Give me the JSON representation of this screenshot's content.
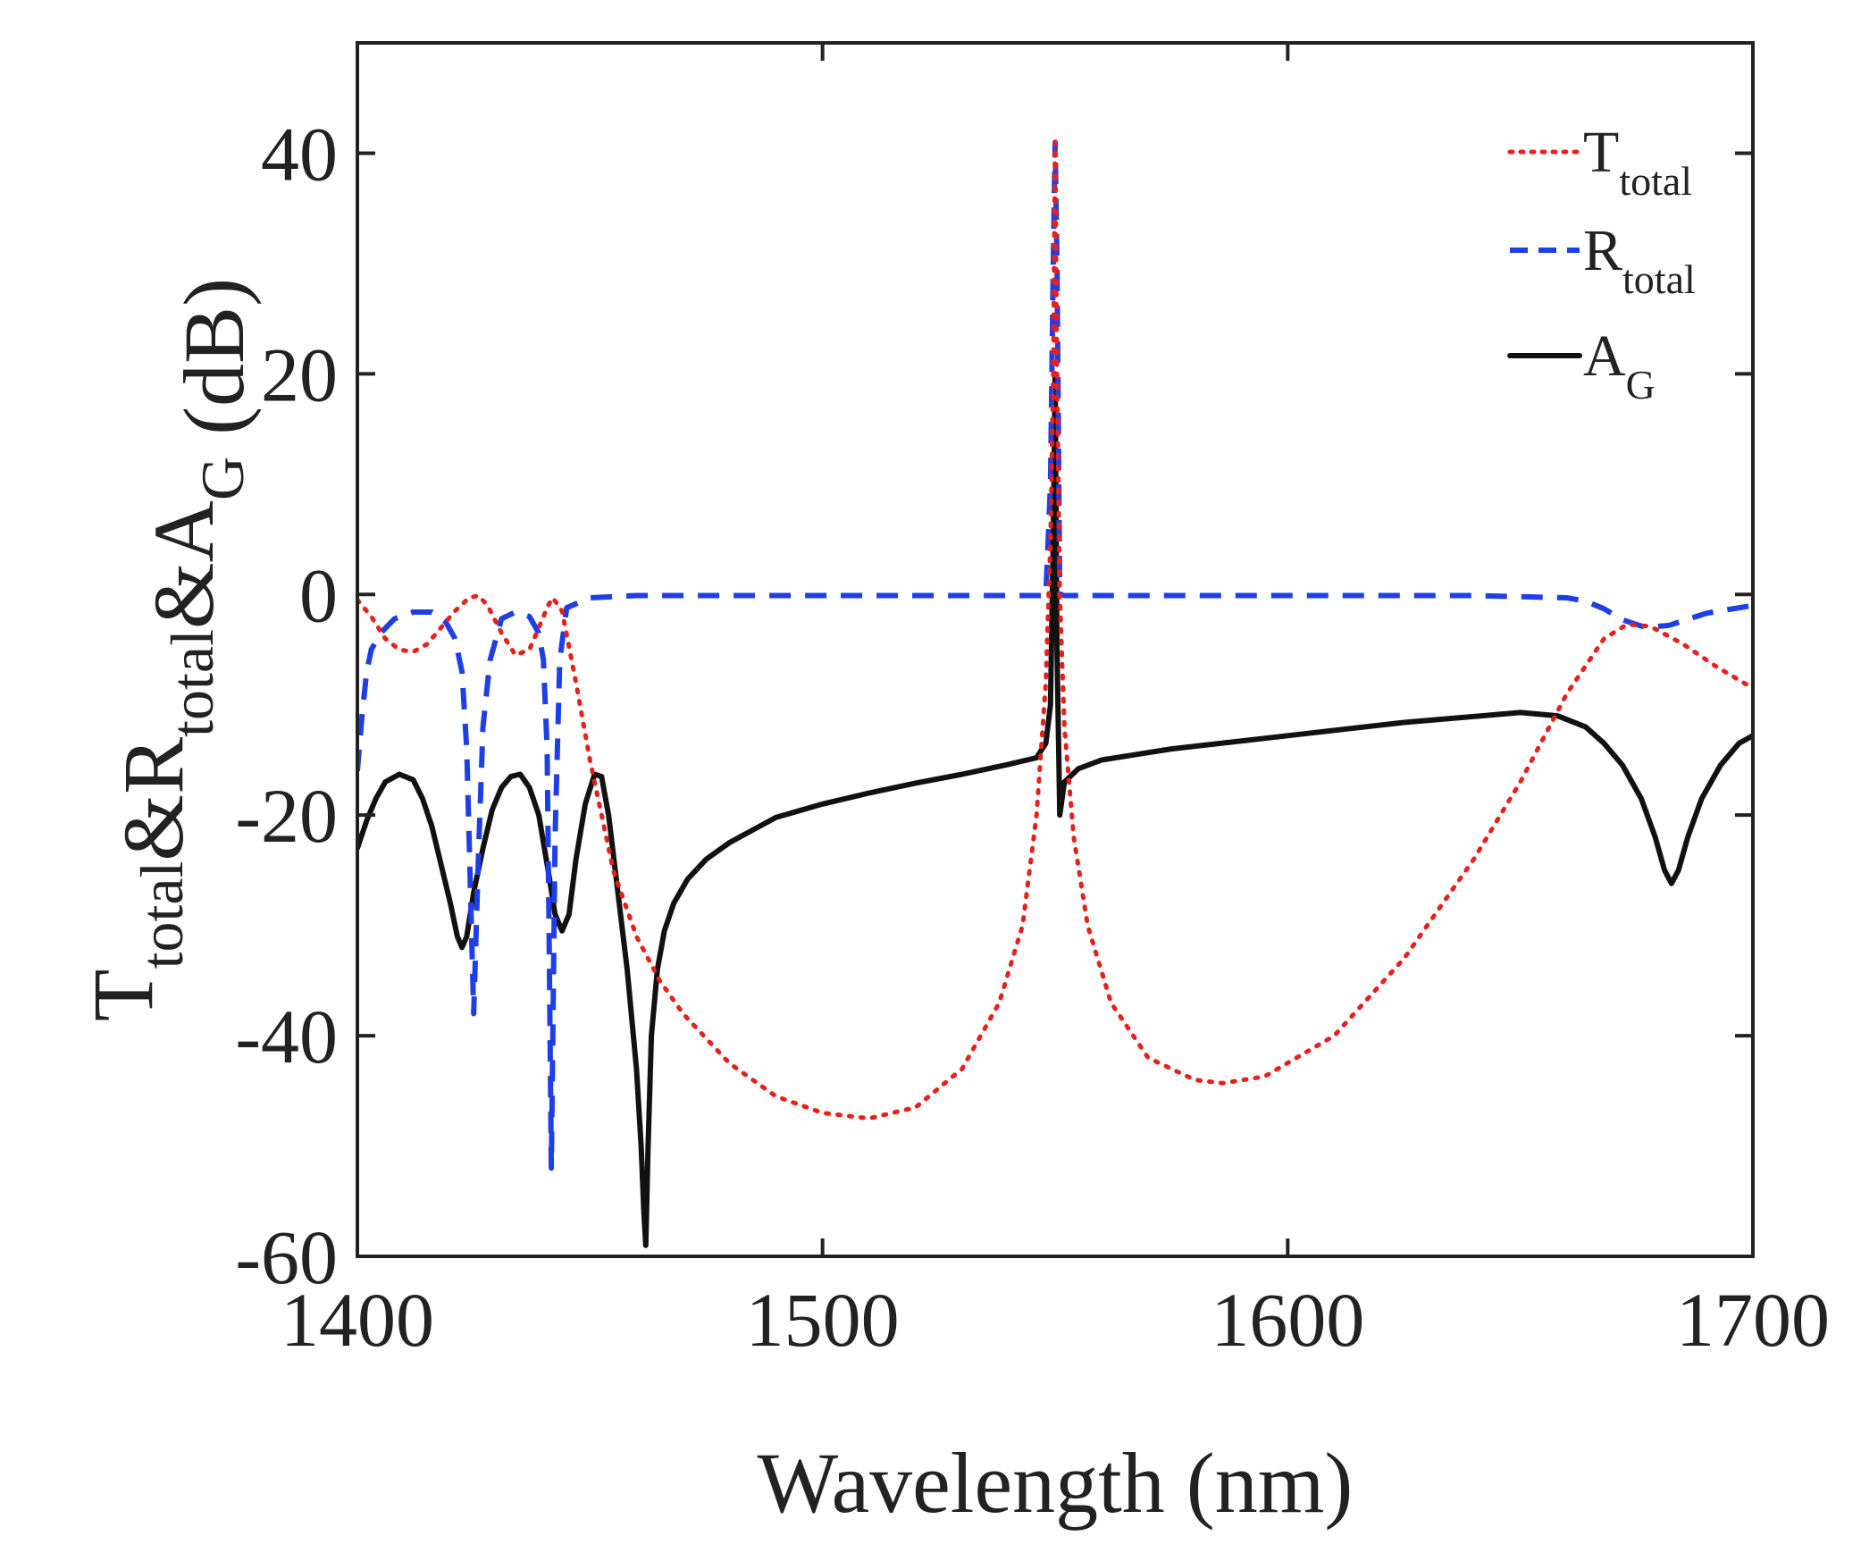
{
  "chart_data": {
    "type": "line",
    "xlabel": "Wavelength (nm)",
    "ylabel": {
      "parts": [
        {
          "text": "T",
          "sub": "total"
        },
        {
          "text": "&R",
          "sub": "total"
        },
        {
          "text": "&A",
          "sub": "G"
        },
        {
          "text": " (dB)",
          "sub": ""
        }
      ]
    },
    "xlim": [
      1400,
      1700
    ],
    "ylim": [
      -60,
      50
    ],
    "xticks": [
      1400,
      1500,
      1600,
      1700
    ],
    "yticks": [
      -60,
      -40,
      -20,
      0,
      20,
      40
    ],
    "xtick_labels": [
      "1400",
      "1500",
      "1600",
      "1700"
    ],
    "ytick_labels": [
      "-60",
      "-40",
      "-20",
      "0",
      "20",
      "40"
    ],
    "grid": false,
    "legend_position": "top-right",
    "series": [
      {
        "name": "T",
        "name_sub": "total",
        "color": "#e8201c",
        "style": "dotted",
        "x": [
          1400,
          1403,
          1406,
          1409,
          1412,
          1415,
          1418,
          1421,
          1424,
          1426,
          1428,
          1431,
          1434,
          1437,
          1439,
          1441,
          1442,
          1444,
          1447,
          1450,
          1455,
          1460,
          1465,
          1470,
          1480,
          1490,
          1500,
          1510,
          1520,
          1530,
          1538,
          1543,
          1546,
          1548,
          1549,
          1549.6,
          1550,
          1550.4,
          1551,
          1552,
          1554,
          1557,
          1562,
          1570,
          1580,
          1586,
          1595,
          1610,
          1625,
          1640,
          1650,
          1660,
          1668,
          1673,
          1678,
          1685,
          1692,
          1700
        ],
        "y": [
          -0.5,
          -2,
          -4,
          -5,
          -5.2,
          -4.5,
          -3,
          -1.5,
          -0.3,
          -0.1,
          -1,
          -3.5,
          -5.5,
          -5,
          -3,
          -1,
          -0.3,
          -1.5,
          -8,
          -15,
          -25,
          -31,
          -35,
          -38,
          -42.5,
          -45.5,
          -47,
          -47.5,
          -46.5,
          -43,
          -37,
          -30,
          -20,
          -8,
          5,
          20,
          41,
          20,
          0,
          -12,
          -22,
          -30,
          -37,
          -42,
          -44,
          -44.3,
          -43.7,
          -40,
          -33,
          -24,
          -17,
          -9,
          -4,
          -2.7,
          -2.9,
          -4.5,
          -6.5,
          -8.5
        ]
      },
      {
        "name": "R",
        "name_sub": "total",
        "color": "#1f3fe6",
        "style": "dashed",
        "x": [
          1400,
          1401,
          1402,
          1403,
          1405,
          1408,
          1412,
          1416,
          1419,
          1421,
          1422.5,
          1423.5,
          1424.2,
          1425,
          1426,
          1427,
          1428.5,
          1431,
          1434,
          1437,
          1439,
          1440,
          1440.8,
          1441.2,
          1441.7,
          1442.5,
          1443.5,
          1445,
          1450,
          1460,
          1480,
          1500,
          1530,
          1548,
          1549,
          1549.6,
          1550,
          1550.4,
          1551,
          1552,
          1560,
          1600,
          1640,
          1660,
          1664,
          1668,
          1672,
          1677,
          1682,
          1690,
          1700
        ],
        "y": [
          -16,
          -11,
          -7,
          -5,
          -3.5,
          -2.2,
          -1.6,
          -1.6,
          -2.5,
          -4,
          -7,
          -14,
          -25,
          -38,
          -24,
          -12,
          -6,
          -2.2,
          -1.6,
          -2,
          -3.5,
          -6,
          -14,
          -30,
          -52,
          -22,
          -6,
          -1.2,
          -0.3,
          -0.1,
          -0.1,
          -0.1,
          -0.1,
          -0.1,
          10,
          30,
          41,
          30,
          0,
          -0.1,
          -0.1,
          -0.1,
          -0.1,
          -0.3,
          -0.6,
          -1.3,
          -2.3,
          -3,
          -2.8,
          -1.7,
          -1
        ]
      },
      {
        "name": "A",
        "name_sub": "G",
        "color": "#111111",
        "style": "solid",
        "x": [
          1400,
          1402,
          1404,
          1406,
          1409,
          1412,
          1414,
          1416,
          1418,
          1420,
          1421.5,
          1422.5,
          1423.5,
          1425,
          1427,
          1429,
          1431,
          1433,
          1435,
          1437,
          1439,
          1441,
          1442.5,
          1444,
          1445.5,
          1447,
          1449,
          1451,
          1452.5,
          1454,
          1456,
          1458,
          1460,
          1461,
          1461.6,
          1462,
          1462.5,
          1463.2,
          1464.5,
          1466,
          1468,
          1471,
          1475,
          1480,
          1490,
          1500,
          1510,
          1520,
          1530,
          1540,
          1546,
          1548,
          1549,
          1549.6,
          1550,
          1550.4,
          1551,
          1552,
          1555,
          1560,
          1575,
          1600,
          1625,
          1650,
          1658,
          1664,
          1668,
          1672,
          1676,
          1679,
          1681,
          1682.5,
          1684,
          1686,
          1689,
          1693,
          1697,
          1700
        ],
        "y": [
          -23,
          -20.5,
          -18.5,
          -17,
          -16.3,
          -16.8,
          -18.5,
          -21,
          -24.5,
          -28,
          -31,
          -32,
          -31,
          -27,
          -23,
          -19.5,
          -17.5,
          -16.5,
          -16.3,
          -17.5,
          -20,
          -25,
          -29,
          -30.5,
          -29,
          -24,
          -19,
          -16.3,
          -16.5,
          -20,
          -27,
          -34,
          -43,
          -50,
          -56,
          -59,
          -50,
          -40,
          -34,
          -30.5,
          -28,
          -25.8,
          -24,
          -22.5,
          -20.2,
          -19,
          -18,
          -17.1,
          -16.3,
          -15.4,
          -14.8,
          -13.5,
          -10,
          5,
          20,
          -5,
          -20,
          -17,
          -15.8,
          -15,
          -14,
          -12.8,
          -11.6,
          -10.7,
          -11,
          -12,
          -13.5,
          -15.5,
          -18.5,
          -22,
          -25,
          -26.2,
          -25,
          -22,
          -18.5,
          -15.5,
          -13.5,
          -12.8
        ]
      }
    ]
  },
  "colors": {
    "axis": "#222222",
    "background": "#ffffff"
  }
}
